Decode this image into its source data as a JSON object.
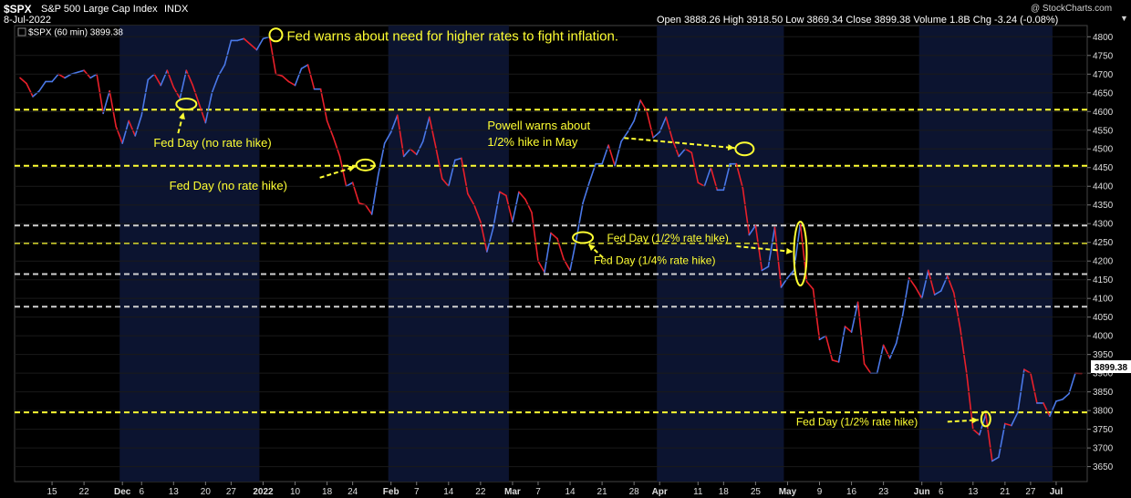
{
  "header": {
    "symbol": "$SPX",
    "name": "S&P 500 Large Cap Index",
    "exchange": "INDX",
    "date": "8-Jul-2022",
    "watermark": "@ StockCharts.com",
    "ohlc": "Open 3888.26  High 3918.50  Low 3869.34  Close 3899.38  Volume 1.8B  Chg -3.24 (-0.08%)",
    "down_arrow": "▼"
  },
  "legend": {
    "label": "$SPX (60 min) 3899.38"
  },
  "price_label": "3899.38",
  "colors": {
    "up": "#4a78e8",
    "down": "#e8202a",
    "annotation": "#ffff33",
    "level_yellow": "#ffff33",
    "level_white": "#d0d0d0",
    "band": "#0c1430",
    "background": "#000000"
  },
  "annotations": [
    {
      "text": "Fed warns about need for higher rates to fight inflation.",
      "date": "2022-01-05",
      "price": 4800
    },
    {
      "text": "Fed Day (no rate hike)",
      "date": "2021-12-15",
      "price": 4615
    },
    {
      "text": "Fed Day (no rate hike)",
      "date": "2022-01-26",
      "price": 4440
    },
    {
      "text": "Powell warns about",
      "date": "2022-04-21",
      "price": 4500
    },
    {
      "text": "1/2% hike in May",
      "date": "2022-04-21",
      "price": 4500
    },
    {
      "text": "Fed Day (1/2% rate hike)",
      "date": "2022-05-04",
      "price": 4220
    },
    {
      "text": "Fed Day (1/4% rate hike)",
      "date": "2022-03-16",
      "price": 4270
    },
    {
      "text": "Fed Day (1/2% rate hike)",
      "date": "2022-06-15",
      "price": 3770
    }
  ],
  "chart_data": {
    "type": "line",
    "title": "$SPX S&P 500 Large Cap Index INDX",
    "interval": "60 min",
    "ylim": [
      3610,
      4830
    ],
    "y_ticks": [
      3650,
      3700,
      3750,
      3800,
      3850,
      3900,
      3950,
      4000,
      4050,
      4100,
      4150,
      4200,
      4250,
      4300,
      4350,
      4400,
      4450,
      4500,
      4550,
      4600,
      4650,
      4700,
      4750,
      4800
    ],
    "x_ticks": [
      {
        "label": "15",
        "date": "2021-11-15"
      },
      {
        "label": "22",
        "date": "2021-11-22"
      },
      {
        "label": "Dec",
        "date": "2021-12-01"
      },
      {
        "label": "6",
        "date": "2021-12-06"
      },
      {
        "label": "13",
        "date": "2021-12-13"
      },
      {
        "label": "20",
        "date": "2021-12-20"
      },
      {
        "label": "27",
        "date": "2021-12-27"
      },
      {
        "label": "2022",
        "date": "2022-01-03"
      },
      {
        "label": "10",
        "date": "2022-01-10"
      },
      {
        "label": "18",
        "date": "2022-01-18"
      },
      {
        "label": "24",
        "date": "2022-01-24"
      },
      {
        "label": "Feb",
        "date": "2022-02-01"
      },
      {
        "label": "7",
        "date": "2022-02-07"
      },
      {
        "label": "14",
        "date": "2022-02-14"
      },
      {
        "label": "22",
        "date": "2022-02-22"
      },
      {
        "label": "Mar",
        "date": "2022-03-01"
      },
      {
        "label": "7",
        "date": "2022-03-07"
      },
      {
        "label": "14",
        "date": "2022-03-14"
      },
      {
        "label": "21",
        "date": "2022-03-21"
      },
      {
        "label": "28",
        "date": "2022-03-28"
      },
      {
        "label": "Apr",
        "date": "2022-04-01"
      },
      {
        "label": "11",
        "date": "2022-04-11"
      },
      {
        "label": "18",
        "date": "2022-04-18"
      },
      {
        "label": "25",
        "date": "2022-04-25"
      },
      {
        "label": "May",
        "date": "2022-05-02"
      },
      {
        "label": "9",
        "date": "2022-05-09"
      },
      {
        "label": "16",
        "date": "2022-05-16"
      },
      {
        "label": "23",
        "date": "2022-05-23"
      },
      {
        "label": "Jun",
        "date": "2022-06-01"
      },
      {
        "label": "6",
        "date": "2022-06-06"
      },
      {
        "label": "13",
        "date": "2022-06-13"
      },
      {
        "label": "21",
        "date": "2022-06-21"
      },
      {
        "label": "27",
        "date": "2022-06-27"
      },
      {
        "label": "Jul",
        "date": "2022-07-01"
      }
    ],
    "shaded_months": [
      [
        "2021-12-01",
        "2021-12-31"
      ],
      [
        "2022-02-01",
        "2022-02-28"
      ],
      [
        "2022-04-01",
        "2022-04-29"
      ],
      [
        "2022-06-01",
        "2022-06-30"
      ]
    ],
    "levels": [
      {
        "value": 4605,
        "color": "yellow"
      },
      {
        "value": 4455,
        "color": "yellow"
      },
      {
        "value": 4295,
        "color": "white"
      },
      {
        "value": 4248,
        "color": "yellow"
      },
      {
        "value": 4165,
        "color": "white"
      },
      {
        "value": 4078,
        "color": "white"
      },
      {
        "value": 3795,
        "color": "yellow"
      }
    ],
    "series": [
      {
        "values": [
          [
            "2021-11-08",
            4690
          ],
          [
            "2021-11-09",
            4675
          ],
          [
            "2021-11-10",
            4640
          ],
          [
            "2021-11-11",
            4655
          ],
          [
            "2021-11-12",
            4680
          ],
          [
            "2021-11-15",
            4680
          ],
          [
            "2021-11-16",
            4700
          ],
          [
            "2021-11-17",
            4690
          ],
          [
            "2021-11-18",
            4700
          ],
          [
            "2021-11-19",
            4705
          ],
          [
            "2021-11-22",
            4710
          ],
          [
            "2021-11-23",
            4690
          ],
          [
            "2021-11-24",
            4700
          ],
          [
            "2021-11-26",
            4595
          ],
          [
            "2021-11-29",
            4655
          ],
          [
            "2021-11-30",
            4560
          ],
          [
            "2021-12-01",
            4515
          ],
          [
            "2021-12-02",
            4575
          ],
          [
            "2021-12-03",
            4535
          ],
          [
            "2021-12-06",
            4590
          ],
          [
            "2021-12-07",
            4685
          ],
          [
            "2021-12-08",
            4700
          ],
          [
            "2021-12-09",
            4670
          ],
          [
            "2021-12-10",
            4710
          ],
          [
            "2021-12-13",
            4665
          ],
          [
            "2021-12-14",
            4635
          ],
          [
            "2021-12-15",
            4710
          ],
          [
            "2021-12-16",
            4670
          ],
          [
            "2021-12-17",
            4620
          ],
          [
            "2021-12-20",
            4570
          ],
          [
            "2021-12-21",
            4650
          ],
          [
            "2021-12-22",
            4695
          ],
          [
            "2021-12-23",
            4725
          ],
          [
            "2021-12-27",
            4790
          ],
          [
            "2021-12-28",
            4790
          ],
          [
            "2021-12-29",
            4795
          ],
          [
            "2021-12-30",
            4780
          ],
          [
            "2021-12-31",
            4765
          ],
          [
            "2022-01-03",
            4795
          ],
          [
            "2022-01-04",
            4800
          ],
          [
            "2022-01-05",
            4700
          ],
          [
            "2022-01-06",
            4695
          ],
          [
            "2022-01-07",
            4680
          ],
          [
            "2022-01-10",
            4670
          ],
          [
            "2022-01-11",
            4715
          ],
          [
            "2022-01-12",
            4725
          ],
          [
            "2022-01-13",
            4660
          ],
          [
            "2022-01-14",
            4660
          ],
          [
            "2022-01-18",
            4575
          ],
          [
            "2022-01-19",
            4530
          ],
          [
            "2022-01-20",
            4480
          ],
          [
            "2022-01-21",
            4400
          ],
          [
            "2022-01-24",
            4410
          ],
          [
            "2022-01-25",
            4355
          ],
          [
            "2022-01-26",
            4350
          ],
          [
            "2022-01-27",
            4325
          ],
          [
            "2022-01-28",
            4430
          ],
          [
            "2022-01-31",
            4515
          ],
          [
            "2022-02-01",
            4545
          ],
          [
            "2022-02-02",
            4590
          ],
          [
            "2022-02-03",
            4480
          ],
          [
            "2022-02-04",
            4500
          ],
          [
            "2022-02-07",
            4485
          ],
          [
            "2022-02-08",
            4520
          ],
          [
            "2022-02-09",
            4585
          ],
          [
            "2022-02-10",
            4505
          ],
          [
            "2022-02-11",
            4420
          ],
          [
            "2022-02-14",
            4400
          ],
          [
            "2022-02-15",
            4470
          ],
          [
            "2022-02-16",
            4475
          ],
          [
            "2022-02-17",
            4380
          ],
          [
            "2022-02-18",
            4350
          ],
          [
            "2022-02-22",
            4305
          ],
          [
            "2022-02-23",
            4225
          ],
          [
            "2022-02-24",
            4290
          ],
          [
            "2022-02-25",
            4385
          ],
          [
            "2022-02-28",
            4375
          ],
          [
            "2022-03-01",
            4305
          ],
          [
            "2022-03-02",
            4385
          ],
          [
            "2022-03-03",
            4365
          ],
          [
            "2022-03-04",
            4330
          ],
          [
            "2022-03-07",
            4200
          ],
          [
            "2022-03-08",
            4170
          ],
          [
            "2022-03-09",
            4275
          ],
          [
            "2022-03-10",
            4260
          ],
          [
            "2022-03-11",
            4205
          ],
          [
            "2022-03-14",
            4175
          ],
          [
            "2022-03-15",
            4260
          ],
          [
            "2022-03-16",
            4355
          ],
          [
            "2022-03-17",
            4410
          ],
          [
            "2022-03-18",
            4460
          ],
          [
            "2022-03-21",
            4460
          ],
          [
            "2022-03-22",
            4510
          ],
          [
            "2022-03-23",
            4455
          ],
          [
            "2022-03-24",
            4520
          ],
          [
            "2022-03-25",
            4545
          ],
          [
            "2022-03-28",
            4575
          ],
          [
            "2022-03-29",
            4630
          ],
          [
            "2022-03-30",
            4600
          ],
          [
            "2022-03-31",
            4530
          ],
          [
            "2022-04-01",
            4545
          ],
          [
            "2022-04-04",
            4585
          ],
          [
            "2022-04-05",
            4525
          ],
          [
            "2022-04-06",
            4480
          ],
          [
            "2022-04-07",
            4500
          ],
          [
            "2022-04-08",
            4490
          ],
          [
            "2022-04-11",
            4410
          ],
          [
            "2022-04-12",
            4400
          ],
          [
            "2022-04-13",
            4450
          ],
          [
            "2022-04-14",
            4390
          ],
          [
            "2022-04-18",
            4390
          ],
          [
            "2022-04-19",
            4460
          ],
          [
            "2022-04-20",
            4460
          ],
          [
            "2022-04-21",
            4395
          ],
          [
            "2022-04-22",
            4270
          ],
          [
            "2022-04-25",
            4295
          ],
          [
            "2022-04-26",
            4175
          ],
          [
            "2022-04-27",
            4185
          ],
          [
            "2022-04-28",
            4290
          ],
          [
            "2022-04-29",
            4130
          ],
          [
            "2022-05-02",
            4155
          ],
          [
            "2022-05-03",
            4175
          ],
          [
            "2022-05-04",
            4300
          ],
          [
            "2022-05-05",
            4145
          ],
          [
            "2022-05-06",
            4125
          ],
          [
            "2022-05-09",
            3990
          ],
          [
            "2022-05-10",
            4000
          ],
          [
            "2022-05-11",
            3935
          ],
          [
            "2022-05-12",
            3930
          ],
          [
            "2022-05-13",
            4025
          ],
          [
            "2022-05-16",
            4010
          ],
          [
            "2022-05-17",
            4090
          ],
          [
            "2022-05-18",
            3925
          ],
          [
            "2022-05-19",
            3900
          ],
          [
            "2022-05-20",
            3900
          ],
          [
            "2022-05-23",
            3975
          ],
          [
            "2022-05-24",
            3940
          ],
          [
            "2022-05-25",
            3980
          ],
          [
            "2022-05-26",
            4055
          ],
          [
            "2022-05-27",
            4155
          ],
          [
            "2022-05-31",
            4130
          ],
          [
            "2022-06-01",
            4100
          ],
          [
            "2022-06-02",
            4175
          ],
          [
            "2022-06-03",
            4110
          ],
          [
            "2022-06-06",
            4120
          ],
          [
            "2022-06-07",
            4160
          ],
          [
            "2022-06-08",
            4115
          ],
          [
            "2022-06-09",
            4020
          ],
          [
            "2022-06-10",
            3900
          ],
          [
            "2022-06-13",
            3750
          ],
          [
            "2022-06-14",
            3735
          ],
          [
            "2022-06-15",
            3790
          ],
          [
            "2022-06-16",
            3665
          ],
          [
            "2022-06-17",
            3675
          ],
          [
            "2022-06-21",
            3765
          ],
          [
            "2022-06-22",
            3760
          ],
          [
            "2022-06-23",
            3795
          ],
          [
            "2022-06-24",
            3910
          ],
          [
            "2022-06-27",
            3900
          ],
          [
            "2022-06-28",
            3820
          ],
          [
            "2022-06-29",
            3820
          ],
          [
            "2022-06-30",
            3785
          ],
          [
            "2022-07-01",
            3825
          ],
          [
            "2022-07-05",
            3830
          ],
          [
            "2022-07-06",
            3845
          ],
          [
            "2022-07-07",
            3900
          ],
          [
            "2022-07-08",
            3899.38
          ]
        ]
      }
    ]
  }
}
